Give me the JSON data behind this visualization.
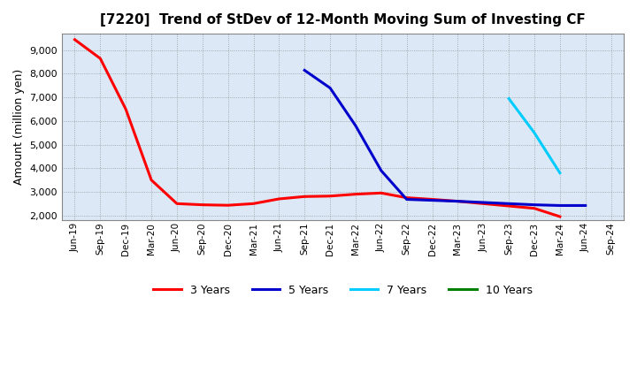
{
  "title": "[7220]  Trend of StDev of 12-Month Moving Sum of Investing CF",
  "ylabel": "Amount (million yen)",
  "background_color": "#ffffff",
  "plot_bg_color": "#dce8f5",
  "grid_color": "#777777",
  "ylim": [
    1800,
    9700
  ],
  "yticks": [
    2000,
    3000,
    4000,
    5000,
    6000,
    7000,
    8000,
    9000
  ],
  "series": {
    "3years": {
      "color": "#ff0000",
      "dates": [
        "Jun-19",
        "Sep-19",
        "Dec-19",
        "Mar-20",
        "Jun-20",
        "Sep-20",
        "Dec-20",
        "Mar-21",
        "Jun-21",
        "Sep-21",
        "Dec-21",
        "Mar-22",
        "Jun-22",
        "Sep-22",
        "Dec-22",
        "Mar-23",
        "Jun-23",
        "Sep-23",
        "Dec-23",
        "Mar-24"
      ],
      "values": [
        9450,
        8650,
        6500,
        3500,
        2500,
        2450,
        2430,
        2500,
        2700,
        2800,
        2820,
        2900,
        2950,
        2750,
        2680,
        2600,
        2500,
        2400,
        2300,
        1950
      ]
    },
    "5years": {
      "color": "#0000cc",
      "dates": [
        "Sep-21",
        "Dec-21",
        "Mar-22",
        "Jun-22",
        "Sep-22",
        "Dec-22",
        "Mar-23",
        "Jun-23",
        "Sep-23",
        "Dec-23",
        "Mar-24",
        "Jun-24"
      ],
      "values": [
        8150,
        7400,
        5800,
        3900,
        2680,
        2640,
        2600,
        2550,
        2500,
        2450,
        2420,
        2420
      ]
    },
    "7years": {
      "color": "#00ccff",
      "dates": [
        "Sep-23",
        "Dec-23",
        "Mar-24"
      ],
      "values": [
        6950,
        5500,
        3800
      ]
    },
    "10years": {
      "color": "#008000",
      "dates": [],
      "values": []
    }
  },
  "legend": [
    "3 Years",
    "5 Years",
    "7 Years",
    "10 Years"
  ],
  "legend_colors": [
    "#ff0000",
    "#0000cc",
    "#00ccff",
    "#008000"
  ],
  "xtick_labels": [
    "Jun-19",
    "Sep-19",
    "Dec-19",
    "Mar-20",
    "Jun-20",
    "Sep-20",
    "Dec-20",
    "Mar-21",
    "Jun-21",
    "Sep-21",
    "Dec-21",
    "Mar-22",
    "Jun-22",
    "Sep-22",
    "Dec-22",
    "Mar-23",
    "Jun-23",
    "Sep-23",
    "Dec-23",
    "Mar-24",
    "Jun-24",
    "Sep-24"
  ]
}
